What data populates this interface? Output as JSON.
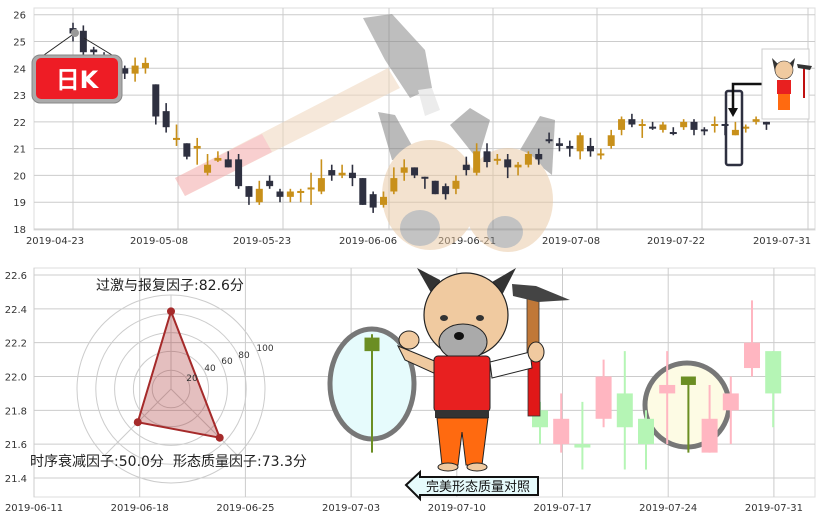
{
  "badge": {
    "text": "日K",
    "color": "#ee1c25"
  },
  "arrow_label": "完美形态质量对照",
  "colors": {
    "down": "#2e3040",
    "up": "#c8901a",
    "pale_up": "#ffb6c1",
    "pale_down": "#b5f5b5",
    "highlight": "#6b8e23"
  },
  "chart_data": [
    {
      "type": "candlestick",
      "title": "",
      "ylim": [
        18,
        26
      ],
      "y_ticks": [
        "26",
        "25",
        "24",
        "23",
        "22",
        "21",
        "20",
        "19",
        "18"
      ],
      "x_ticks": [
        "2019-04-23",
        "2019-05-08",
        "2019-05-23",
        "2019-06-06",
        "2019-06-21",
        "2019-07-08",
        "2019-07-22",
        "2019-07-31"
      ],
      "grid": true,
      "candles": [
        {
          "o": 25.3,
          "h": 25.7,
          "l": 25.0,
          "c": 25.5,
          "d": 1
        },
        {
          "o": 25.4,
          "h": 25.6,
          "l": 24.5,
          "c": 24.6,
          "d": 1
        },
        {
          "o": 24.7,
          "h": 24.8,
          "l": 24.5,
          "c": 24.6,
          "d": 1
        },
        {
          "o": 24.5,
          "h": 24.6,
          "l": 24.2,
          "c": 24.3,
          "d": 1
        },
        {
          "o": 24.2,
          "h": 24.3,
          "l": 23.9,
          "c": 24.0,
          "d": 1
        },
        {
          "o": 24.0,
          "h": 24.1,
          "l": 23.6,
          "c": 23.8,
          "d": 1
        },
        {
          "o": 23.8,
          "h": 24.4,
          "l": 23.5,
          "c": 24.1,
          "d": 0
        },
        {
          "o": 24.0,
          "h": 24.4,
          "l": 23.8,
          "c": 24.2,
          "d": 0
        },
        {
          "o": 23.4,
          "h": 23.4,
          "l": 21.9,
          "c": 22.2,
          "d": 1
        },
        {
          "o": 22.4,
          "h": 22.7,
          "l": 21.6,
          "c": 21.8,
          "d": 1
        },
        {
          "o": 21.4,
          "h": 21.9,
          "l": 21.1,
          "c": 21.4,
          "d": 0
        },
        {
          "o": 21.2,
          "h": 21.2,
          "l": 20.6,
          "c": 20.7,
          "d": 1
        },
        {
          "o": 21.0,
          "h": 21.4,
          "l": 20.4,
          "c": 21.1,
          "d": 0
        },
        {
          "o": 20.1,
          "h": 20.8,
          "l": 20.0,
          "c": 20.4,
          "d": 0
        },
        {
          "o": 20.55,
          "h": 20.9,
          "l": 20.5,
          "c": 20.65,
          "d": 0
        },
        {
          "o": 20.6,
          "h": 20.9,
          "l": 20.3,
          "c": 20.3,
          "d": 1
        },
        {
          "o": 20.6,
          "h": 20.8,
          "l": 19.5,
          "c": 19.6,
          "d": 1
        },
        {
          "o": 19.6,
          "h": 19.6,
          "l": 18.9,
          "c": 19.2,
          "d": 1
        },
        {
          "o": 19.0,
          "h": 19.8,
          "l": 18.9,
          "c": 19.5,
          "d": 0
        },
        {
          "o": 19.8,
          "h": 20.0,
          "l": 19.5,
          "c": 19.6,
          "d": 1
        },
        {
          "o": 19.4,
          "h": 19.5,
          "l": 19.0,
          "c": 19.2,
          "d": 1
        },
        {
          "o": 19.2,
          "h": 19.5,
          "l": 19.0,
          "c": 19.4,
          "d": 0
        },
        {
          "o": 19.4,
          "h": 19.5,
          "l": 19.0,
          "c": 19.42,
          "d": 0
        },
        {
          "o": 19.5,
          "h": 20.1,
          "l": 18.9,
          "c": 19.55,
          "d": 0
        },
        {
          "o": 19.4,
          "h": 20.6,
          "l": 19.3,
          "c": 19.9,
          "d": 0
        },
        {
          "o": 20.2,
          "h": 20.4,
          "l": 19.8,
          "c": 20.0,
          "d": 1
        },
        {
          "o": 20.0,
          "h": 20.4,
          "l": 19.9,
          "c": 20.1,
          "d": 0
        },
        {
          "o": 20.1,
          "h": 20.4,
          "l": 19.6,
          "c": 19.9,
          "d": 1
        },
        {
          "o": 19.9,
          "h": 19.9,
          "l": 18.9,
          "c": 18.9,
          "d": 1
        },
        {
          "o": 19.3,
          "h": 19.4,
          "l": 18.6,
          "c": 18.8,
          "d": 1
        },
        {
          "o": 18.9,
          "h": 19.4,
          "l": 18.8,
          "c": 19.2,
          "d": 0
        },
        {
          "o": 19.4,
          "h": 20.3,
          "l": 19.3,
          "c": 19.9,
          "d": 0
        },
        {
          "o": 20.1,
          "h": 20.6,
          "l": 19.8,
          "c": 20.3,
          "d": 0
        },
        {
          "o": 20.3,
          "h": 20.3,
          "l": 19.9,
          "c": 20.0,
          "d": 1
        },
        {
          "o": 19.95,
          "h": 19.95,
          "l": 19.5,
          "c": 19.9,
          "d": 1
        },
        {
          "o": 19.8,
          "h": 19.8,
          "l": 19.3,
          "c": 19.3,
          "d": 1
        },
        {
          "o": 19.6,
          "h": 19.7,
          "l": 19.1,
          "c": 19.3,
          "d": 1
        },
        {
          "o": 19.5,
          "h": 20.0,
          "l": 19.3,
          "c": 19.8,
          "d": 0
        },
        {
          "o": 20.4,
          "h": 20.7,
          "l": 20.0,
          "c": 20.2,
          "d": 1
        },
        {
          "o": 20.1,
          "h": 21.2,
          "l": 20.0,
          "c": 20.9,
          "d": 0
        },
        {
          "o": 20.9,
          "h": 21.2,
          "l": 20.3,
          "c": 20.5,
          "d": 1
        },
        {
          "o": 20.6,
          "h": 20.8,
          "l": 20.4,
          "c": 20.62,
          "d": 0
        },
        {
          "o": 20.6,
          "h": 20.8,
          "l": 19.9,
          "c": 20.3,
          "d": 1
        },
        {
          "o": 20.3,
          "h": 20.5,
          "l": 20.0,
          "c": 20.4,
          "d": 0
        },
        {
          "o": 20.4,
          "h": 20.9,
          "l": 20.3,
          "c": 20.8,
          "d": 0
        },
        {
          "o": 20.8,
          "h": 21.0,
          "l": 20.4,
          "c": 20.6,
          "d": 1
        },
        {
          "o": 21.35,
          "h": 21.6,
          "l": 21.2,
          "c": 21.3,
          "d": 1
        },
        {
          "o": 21.2,
          "h": 21.4,
          "l": 20.9,
          "c": 21.1,
          "d": 1
        },
        {
          "o": 21.1,
          "h": 21.3,
          "l": 20.7,
          "c": 21.0,
          "d": 1
        },
        {
          "o": 20.9,
          "h": 21.6,
          "l": 20.6,
          "c": 21.5,
          "d": 0
        },
        {
          "o": 21.1,
          "h": 21.4,
          "l": 20.7,
          "c": 20.9,
          "d": 1
        },
        {
          "o": 20.8,
          "h": 21.0,
          "l": 20.6,
          "c": 20.82,
          "d": 0
        },
        {
          "o": 21.1,
          "h": 21.7,
          "l": 21.0,
          "c": 21.5,
          "d": 0
        },
        {
          "o": 21.7,
          "h": 22.2,
          "l": 21.5,
          "c": 22.1,
          "d": 0
        },
        {
          "o": 22.1,
          "h": 22.3,
          "l": 21.8,
          "c": 21.9,
          "d": 1
        },
        {
          "o": 21.9,
          "h": 22.1,
          "l": 21.4,
          "c": 21.92,
          "d": 0
        },
        {
          "o": 21.82,
          "h": 22.0,
          "l": 21.7,
          "c": 21.78,
          "d": 1
        },
        {
          "o": 21.7,
          "h": 22.0,
          "l": 21.6,
          "c": 21.9,
          "d": 0
        },
        {
          "o": 21.62,
          "h": 21.8,
          "l": 21.5,
          "c": 21.58,
          "d": 1
        },
        {
          "o": 21.8,
          "h": 22.1,
          "l": 21.7,
          "c": 22.0,
          "d": 0
        },
        {
          "o": 22.0,
          "h": 22.1,
          "l": 21.5,
          "c": 21.7,
          "d": 1
        },
        {
          "o": 21.72,
          "h": 21.8,
          "l": 21.5,
          "c": 21.68,
          "d": 1
        },
        {
          "o": 21.9,
          "h": 22.2,
          "l": 21.6,
          "c": 21.92,
          "d": 0
        },
        {
          "o": 21.92,
          "h": 21.92,
          "l": 21.5,
          "c": 21.88,
          "d": 1
        },
        {
          "o": 21.5,
          "h": 22.0,
          "l": 21.5,
          "c": 21.7,
          "d": 0
        },
        {
          "o": 21.78,
          "h": 21.9,
          "l": 21.6,
          "c": 21.82,
          "d": 0
        },
        {
          "o": 22.0,
          "h": 22.2,
          "l": 21.9,
          "c": 22.1,
          "d": 0
        },
        {
          "o": 22.0,
          "h": 22.0,
          "l": 21.7,
          "c": 21.9,
          "d": 1
        }
      ]
    },
    {
      "type": "candlestick",
      "title": "",
      "ylim": [
        21.4,
        22.6
      ],
      "y_ticks": [
        "22.6",
        "22.4",
        "22.2",
        "22.0",
        "21.8",
        "21.6",
        "21.4"
      ],
      "x_ticks": [
        "2019-06-11",
        "2019-06-18",
        "2019-06-25",
        "2019-07-03",
        "2019-07-10",
        "2019-07-17",
        "2019-07-24",
        "2019-07-31"
      ],
      "grid": true,
      "reference_candle": {
        "o": 22.15,
        "h": 22.25,
        "l": 21.55,
        "c": 22.23
      },
      "candles": [
        {
          "o": 21.8,
          "h": 21.85,
          "l": 21.6,
          "c": 21.7,
          "d": 1
        },
        {
          "o": 21.75,
          "h": 21.9,
          "l": 21.55,
          "c": 21.6,
          "d": 0
        },
        {
          "o": 21.6,
          "h": 21.85,
          "l": 21.45,
          "c": 21.58,
          "d": 1
        },
        {
          "o": 21.75,
          "h": 22.1,
          "l": 21.7,
          "c": 22.0,
          "d": 0
        },
        {
          "o": 21.9,
          "h": 22.15,
          "l": 21.45,
          "c": 21.7,
          "d": 1
        },
        {
          "o": 21.75,
          "h": 21.8,
          "l": 21.45,
          "c": 21.6,
          "d": 1
        },
        {
          "o": 21.9,
          "h": 22.15,
          "l": 21.6,
          "c": 21.95,
          "d": 0
        },
        {
          "o": 21.95,
          "h": 22.0,
          "l": 21.55,
          "c": 22.0,
          "d": 2
        },
        {
          "o": 21.55,
          "h": 21.95,
          "l": 21.55,
          "c": 21.75,
          "d": 0
        },
        {
          "o": 21.8,
          "h": 22.0,
          "l": 21.6,
          "c": 21.9,
          "d": 0
        },
        {
          "o": 22.05,
          "h": 22.45,
          "l": 22.0,
          "c": 22.2,
          "d": 0
        },
        {
          "o": 22.15,
          "h": 22.15,
          "l": 21.7,
          "c": 21.9,
          "d": 1
        }
      ]
    },
    {
      "type": "radar",
      "r_ticks": [
        "20",
        "40",
        "60",
        "80",
        "100"
      ],
      "rlim": [
        0,
        100
      ],
      "axes": [
        {
          "name": "过激与报复因子",
          "value": 82.6,
          "label": "过激与报复因子:82.6分"
        },
        {
          "name": "形态质量因子",
          "value": 73.3,
          "label": "形态质量因子:73.3分"
        },
        {
          "name": "时序衰减因子",
          "value": 50.0,
          "label": "时序衰减因子:50.0分"
        }
      ],
      "color": "#a52a2a"
    }
  ]
}
